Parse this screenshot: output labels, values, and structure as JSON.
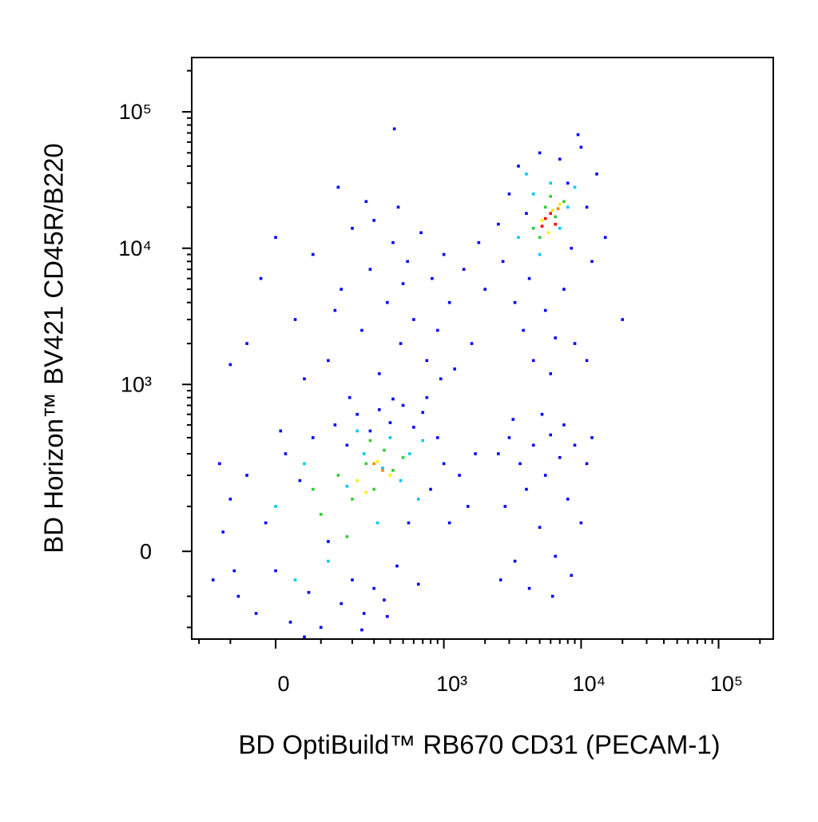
{
  "chart_data": {
    "type": "scatter",
    "xlabel": "BD OptiBuild™ RB670 CD31 (PECAM-1)",
    "ylabel": "BD Horizon™ BV421 CD45R/B220",
    "xscale": "logicle",
    "yscale": "logicle",
    "xlim": [
      -230,
      250000
    ],
    "ylim": [
      -250,
      250000
    ],
    "xticks": [
      0,
      {
        "value": 1000,
        "label": "10³"
      },
      {
        "value": 10000,
        "label": "10⁴"
      },
      {
        "value": 100000,
        "label": "10⁵"
      }
    ],
    "yticks": [
      0,
      {
        "value": 1000,
        "label": "10³"
      },
      {
        "value": 10000,
        "label": "10⁴"
      },
      {
        "value": 100000,
        "label": "10⁵"
      }
    ],
    "xminorticks": [
      -200,
      -100,
      100,
      200,
      300,
      400,
      500,
      600,
      700,
      800,
      900,
      2000,
      3000,
      4000,
      5000,
      6000,
      7000,
      8000,
      9000,
      20000,
      30000,
      40000,
      50000,
      60000,
      70000,
      80000,
      90000,
      200000
    ],
    "yminorticks": [
      -200,
      -100,
      100,
      200,
      300,
      400,
      500,
      600,
      700,
      800,
      900,
      2000,
      3000,
      4000,
      5000,
      6000,
      7000,
      8000,
      9000,
      20000,
      30000,
      40000,
      50000,
      60000,
      70000,
      80000,
      90000,
      200000
    ],
    "series": [
      {
        "color": "#0000ff",
        "points": [
          [
            -150,
            -60
          ],
          [
            -120,
            40
          ],
          [
            -100,
            120
          ],
          [
            -80,
            -100
          ],
          [
            -60,
            200
          ],
          [
            -40,
            -150
          ],
          [
            -20,
            60
          ],
          [
            0,
            -40
          ],
          [
            20,
            300
          ],
          [
            30,
            -180
          ],
          [
            50,
            180
          ],
          [
            70,
            -90
          ],
          [
            80,
            400
          ],
          [
            100,
            -200
          ],
          [
            120,
            20
          ],
          [
            140,
            500
          ],
          [
            160,
            -120
          ],
          [
            180,
            350
          ],
          [
            200,
            -60
          ],
          [
            220,
            600
          ],
          [
            250,
            -150
          ],
          [
            280,
            450
          ],
          [
            300,
            -80
          ],
          [
            330,
            650
          ],
          [
            360,
            -110
          ],
          [
            400,
            520
          ],
          [
            450,
            -30
          ],
          [
            500,
            700
          ],
          [
            550,
            60
          ],
          [
            600,
            480
          ],
          [
            650,
            -70
          ],
          [
            700,
            620
          ],
          [
            800,
            150
          ],
          [
            900,
            400
          ],
          [
            1000,
            250
          ],
          [
            1100,
            60
          ],
          [
            1300,
            200
          ],
          [
            1500,
            100
          ],
          [
            1700,
            300
          ],
          [
            -130,
            250
          ],
          [
            -90,
            -40
          ],
          [
            10,
            450
          ],
          [
            60,
            -240
          ],
          [
            240,
            -210
          ],
          [
            380,
            -160
          ],
          [
            190,
            800
          ],
          [
            420,
            780
          ],
          [
            750,
            800
          ],
          [
            2500,
            300
          ],
          [
            2800,
            100
          ],
          [
            3000,
            400
          ],
          [
            3300,
            -20
          ],
          [
            3600,
            250
          ],
          [
            4000,
            150
          ],
          [
            4500,
            350
          ],
          [
            5000,
            50
          ],
          [
            5500,
            200
          ],
          [
            6000,
            420
          ],
          [
            6500,
            -10
          ],
          [
            7000,
            280
          ],
          [
            8000,
            120
          ],
          [
            9000,
            350
          ],
          [
            10000,
            60
          ],
          [
            11000,
            250
          ],
          [
            3200,
            550
          ],
          [
            5200,
            600
          ],
          [
            7500,
            500
          ],
          [
            2600,
            -60
          ],
          [
            4200,
            -80
          ],
          [
            8500,
            -50
          ],
          [
            12000,
            400
          ],
          [
            6200,
            -100
          ],
          [
            -60,
            2000
          ],
          [
            -30,
            6000
          ],
          [
            0,
            12000
          ],
          [
            40,
            3000
          ],
          [
            80,
            9000
          ],
          [
            120,
            1500
          ],
          [
            160,
            5000
          ],
          [
            200,
            14000
          ],
          [
            240,
            2500
          ],
          [
            280,
            7000
          ],
          [
            330,
            1200
          ],
          [
            380,
            4000
          ],
          [
            420,
            11000
          ],
          [
            480,
            2000
          ],
          [
            540,
            8000
          ],
          [
            600,
            3000
          ],
          [
            680,
            13000
          ],
          [
            750,
            1500
          ],
          [
            820,
            6000
          ],
          [
            900,
            2500
          ],
          [
            1000,
            9000
          ],
          [
            1100,
            4000
          ],
          [
            1200,
            1300
          ],
          [
            1400,
            7000
          ],
          [
            1600,
            2000
          ],
          [
            1800,
            11000
          ],
          [
            2000,
            5000
          ],
          [
            60,
            1100
          ],
          [
            300,
            16000
          ],
          [
            -100,
            1400
          ],
          [
            140,
            3500
          ],
          [
            500,
            5500
          ],
          [
            260,
            22000
          ],
          [
            150,
            28000
          ],
          [
            950,
            1100
          ],
          [
            430,
            75000
          ],
          [
            460,
            20000
          ],
          [
            2500,
            15000
          ],
          [
            2700,
            8000
          ],
          [
            3000,
            25000
          ],
          [
            3300,
            4000
          ],
          [
            3500,
            40000
          ],
          [
            3800,
            2500
          ],
          [
            4200,
            6000
          ],
          [
            4500,
            1500
          ],
          [
            5000,
            50000
          ],
          [
            5500,
            3500
          ],
          [
            6000,
            1200
          ],
          [
            6500,
            2200
          ],
          [
            7000,
            45000
          ],
          [
            7500,
            5000
          ],
          [
            8000,
            30000
          ],
          [
            9000,
            2000
          ],
          [
            10000,
            55000
          ],
          [
            11000,
            20000
          ],
          [
            12000,
            8000
          ],
          [
            13000,
            35000
          ],
          [
            15000,
            12000
          ],
          [
            20000,
            3000
          ],
          [
            4000,
            18000
          ],
          [
            9500,
            68000
          ],
          [
            11000,
            1500
          ],
          [
            8500,
            10000
          ]
        ]
      },
      {
        "color": "#00c8ff",
        "points": [
          [
            0,
            100
          ],
          [
            60,
            250
          ],
          [
            120,
            -20
          ],
          [
            180,
            160
          ],
          [
            250,
            300
          ],
          [
            320,
            60
          ],
          [
            400,
            400
          ],
          [
            480,
            180
          ],
          [
            560,
            300
          ],
          [
            650,
            120
          ],
          [
            40,
            -60
          ],
          [
            220,
            450
          ],
          [
            350,
            230
          ],
          [
            700,
            380
          ],
          [
            3500,
            12000
          ],
          [
            4500,
            25000
          ],
          [
            6000,
            30000
          ],
          [
            8000,
            20000
          ],
          [
            5000,
            9000
          ],
          [
            7000,
            14000
          ],
          [
            9000,
            28000
          ],
          [
            4000,
            35000
          ]
        ]
      },
      {
        "color": "#33cc33",
        "points": [
          [
            100,
            80
          ],
          [
            150,
            200
          ],
          [
            200,
            120
          ],
          [
            260,
            250
          ],
          [
            300,
            150
          ],
          [
            360,
            320
          ],
          [
            420,
            220
          ],
          [
            500,
            280
          ],
          [
            180,
            30
          ],
          [
            280,
            380
          ],
          [
            80,
            150
          ],
          [
            4500,
            14000
          ],
          [
            5500,
            20000
          ],
          [
            6500,
            17000
          ],
          [
            7500,
            22000
          ],
          [
            5000,
            12000
          ],
          [
            6000,
            24000
          ]
        ]
      },
      {
        "color": "#ffee00",
        "points": [
          [
            220,
            180
          ],
          [
            320,
            260
          ],
          [
            400,
            200
          ],
          [
            260,
            140
          ],
          [
            5200,
            16000
          ],
          [
            6200,
            19000
          ],
          [
            7000,
            21000
          ],
          [
            5800,
            13000
          ]
        ]
      },
      {
        "color": "#ff8800",
        "points": [
          [
            350,
            220
          ],
          [
            300,
            250
          ],
          [
            6800,
            19500
          ]
        ]
      },
      {
        "color": "#ff0000",
        "points": [
          [
            5500,
            16500
          ],
          [
            6000,
            18000
          ],
          [
            6500,
            15000
          ],
          [
            5200,
            14500
          ]
        ]
      }
    ]
  }
}
